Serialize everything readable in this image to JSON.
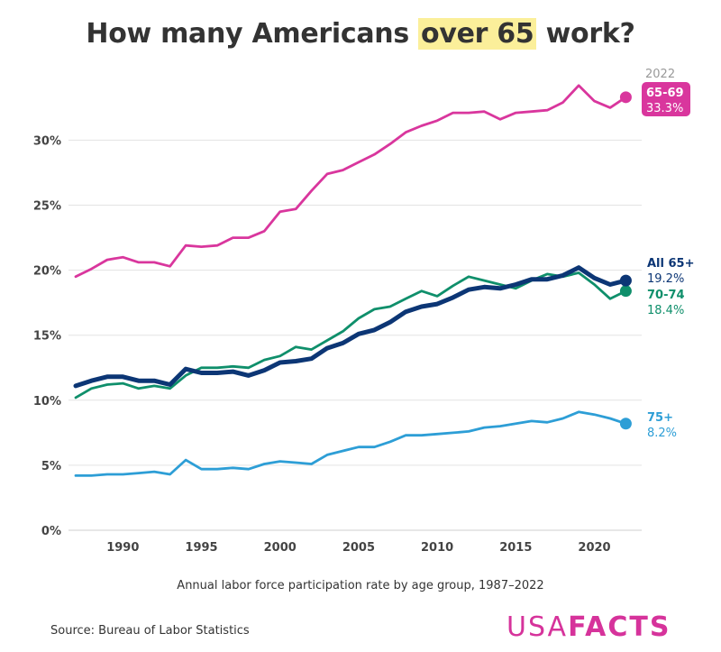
{
  "title": {
    "before": "How many Americans ",
    "highlight": "over 65",
    "after": " work?"
  },
  "subtitle": "Annual labor force participation rate by age group, 1987–2022",
  "source": "Source: Bureau of Labor Statistics",
  "brand": {
    "part1": "USA",
    "part2": "FACTS"
  },
  "year_label": "2022",
  "chart_data": {
    "type": "line",
    "x": [
      1987,
      1988,
      1989,
      1990,
      1991,
      1992,
      1993,
      1994,
      1995,
      1996,
      1997,
      1998,
      1999,
      2000,
      2001,
      2002,
      2003,
      2004,
      2005,
      2006,
      2007,
      2008,
      2009,
      2010,
      2011,
      2012,
      2013,
      2014,
      2015,
      2016,
      2017,
      2018,
      2019,
      2020,
      2021,
      2022
    ],
    "xlim": [
      1985,
      2024
    ],
    "ylim": [
      0,
      35
    ],
    "xticks": [
      1990,
      1995,
      2000,
      2005,
      2010,
      2015,
      2020
    ],
    "yticks": [
      0,
      5,
      10,
      15,
      20,
      25,
      30
    ],
    "ytick_labels": [
      "0%",
      "5%",
      "10%",
      "15%",
      "20%",
      "25%",
      "30%"
    ],
    "grid": true,
    "series": [
      {
        "name": "65-69",
        "value_label": "33.3%",
        "color": "#d9369d",
        "style": "badge",
        "values": [
          19.5,
          20.1,
          20.8,
          21.0,
          20.6,
          20.6,
          20.3,
          21.9,
          21.8,
          21.9,
          22.5,
          22.5,
          23.0,
          24.5,
          24.7,
          26.1,
          27.4,
          27.7,
          28.3,
          28.9,
          29.7,
          30.6,
          31.1,
          31.5,
          32.1,
          32.1,
          32.2,
          31.6,
          32.1,
          32.2,
          32.3,
          32.9,
          34.2,
          33.0,
          32.5,
          33.3
        ]
      },
      {
        "name": "70-74",
        "value_label": "18.4%",
        "color": "#0f8f6b",
        "style": "label",
        "values": [
          10.2,
          10.9,
          11.2,
          11.3,
          10.9,
          11.1,
          10.9,
          11.9,
          12.5,
          12.5,
          12.6,
          12.5,
          13.1,
          13.4,
          14.1,
          13.9,
          14.6,
          15.3,
          16.3,
          17.0,
          17.2,
          17.8,
          18.4,
          18.0,
          18.8,
          19.5,
          19.2,
          18.9,
          18.6,
          19.2,
          19.7,
          19.5,
          19.8,
          18.9,
          17.8,
          18.4
        ]
      },
      {
        "name": "All 65+",
        "value_label": "19.2%",
        "color": "#0c3675",
        "style": "label",
        "values": [
          11.1,
          11.5,
          11.8,
          11.8,
          11.5,
          11.5,
          11.2,
          12.4,
          12.1,
          12.1,
          12.2,
          11.9,
          12.3,
          12.9,
          13.0,
          13.2,
          14.0,
          14.4,
          15.1,
          15.4,
          16.0,
          16.8,
          17.2,
          17.4,
          17.9,
          18.5,
          18.7,
          18.6,
          18.9,
          19.3,
          19.3,
          19.6,
          20.2,
          19.4,
          18.9,
          19.2
        ]
      },
      {
        "name": "75+",
        "value_label": "8.2%",
        "color": "#2d9ed6",
        "style": "label",
        "values": [
          4.2,
          4.2,
          4.3,
          4.3,
          4.4,
          4.5,
          4.3,
          5.4,
          4.7,
          4.7,
          4.8,
          4.7,
          5.1,
          5.3,
          5.2,
          5.1,
          5.8,
          6.1,
          6.4,
          6.4,
          6.8,
          7.3,
          7.3,
          7.4,
          7.5,
          7.6,
          7.9,
          8.0,
          8.2,
          8.4,
          8.3,
          8.6,
          9.1,
          8.9,
          8.6,
          8.2
        ]
      }
    ]
  }
}
